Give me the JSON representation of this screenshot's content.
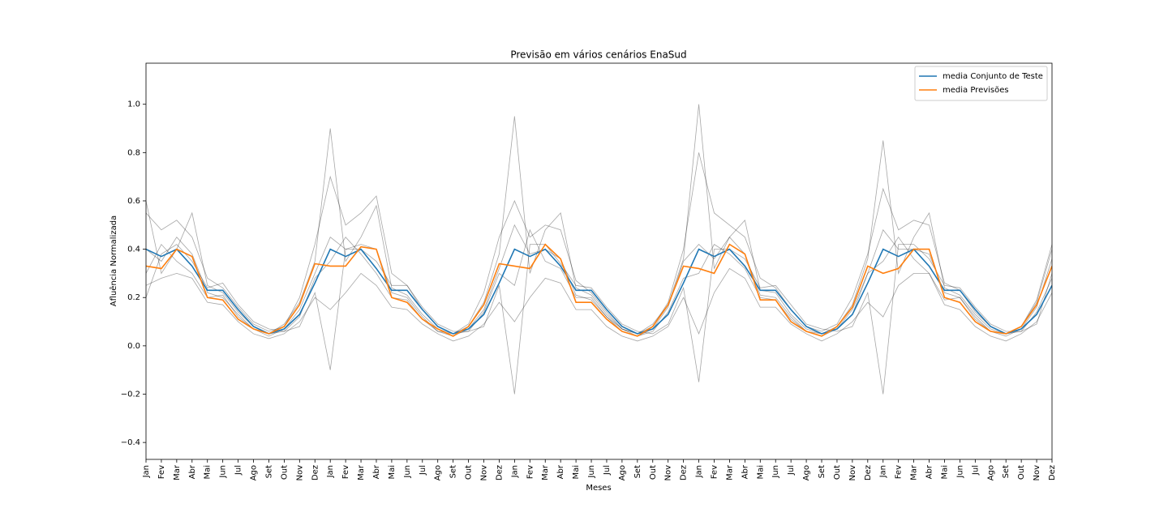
{
  "chart_data": {
    "type": "line",
    "title": "Previsão em vários cenários EnaSud",
    "xlabel": "Meses",
    "ylabel": "Afluência Normalizada",
    "categories": [
      "Jan",
      "Fev",
      "Mar",
      "Abr",
      "Mai",
      "Jun",
      "Jul",
      "Ago",
      "Set",
      "Out",
      "Nov",
      "Dez",
      "Jan",
      "Fev",
      "Mar",
      "Abr",
      "Mai",
      "Jun",
      "Jul",
      "Ago",
      "Set",
      "Out",
      "Nov",
      "Dez",
      "Jan",
      "Fev",
      "Mar",
      "Abr",
      "Mai",
      "Jun",
      "Jul",
      "Ago",
      "Set",
      "Out",
      "Nov",
      "Dez",
      "Jan",
      "Fev",
      "Mar",
      "Abr",
      "Mai",
      "Jun",
      "Jul",
      "Ago",
      "Set",
      "Out",
      "Nov",
      "Dez",
      "Jan",
      "Fev",
      "Mar",
      "Abr",
      "Mai",
      "Jun",
      "Jul",
      "Ago",
      "Set",
      "Out",
      "Nov",
      "Dez"
    ],
    "series": [
      {
        "name": "media Conjunto de Teste",
        "color": "#1f77b4",
        "values": [
          0.4,
          0.37,
          0.4,
          0.33,
          0.23,
          0.23,
          0.15,
          0.08,
          0.05,
          0.07,
          0.13,
          0.26,
          0.4,
          0.37,
          0.4,
          0.32,
          0.23,
          0.23,
          0.15,
          0.08,
          0.05,
          0.07,
          0.13,
          0.26,
          0.4,
          0.37,
          0.4,
          0.33,
          0.23,
          0.23,
          0.15,
          0.08,
          0.05,
          0.07,
          0.13,
          0.26,
          0.4,
          0.37,
          0.4,
          0.33,
          0.23,
          0.23,
          0.15,
          0.08,
          0.05,
          0.07,
          0.13,
          0.26,
          0.4,
          0.37,
          0.4,
          0.33,
          0.23,
          0.23,
          0.15,
          0.08,
          0.05,
          0.07,
          0.13,
          0.25
        ]
      },
      {
        "name": "media Previsões",
        "color": "#ff7f0e",
        "values": [
          0.33,
          0.32,
          0.4,
          0.37,
          0.2,
          0.19,
          0.11,
          0.07,
          0.05,
          0.08,
          0.17,
          0.34,
          0.33,
          0.33,
          0.41,
          0.4,
          0.2,
          0.18,
          0.11,
          0.07,
          0.04,
          0.08,
          0.17,
          0.34,
          0.33,
          0.32,
          0.42,
          0.36,
          0.18,
          0.18,
          0.11,
          0.06,
          0.04,
          0.08,
          0.17,
          0.33,
          0.32,
          0.3,
          0.42,
          0.38,
          0.19,
          0.19,
          0.1,
          0.06,
          0.04,
          0.08,
          0.16,
          0.33,
          0.3,
          0.32,
          0.4,
          0.4,
          0.2,
          0.18,
          0.1,
          0.06,
          0.05,
          0.08,
          0.17,
          0.33
        ]
      }
    ],
    "scenario_color": "#000000",
    "scenarios": [
      [
        0.55,
        0.48,
        0.52,
        0.45,
        0.28,
        0.24,
        0.16,
        0.09,
        0.06,
        0.08,
        0.2,
        0.42,
        0.7,
        0.5,
        0.55,
        0.62,
        0.3,
        0.25,
        0.15,
        0.08,
        0.05,
        0.09,
        0.22,
        0.45,
        0.6,
        0.45,
        0.5,
        0.48,
        0.27,
        0.22,
        0.14,
        0.07,
        0.05,
        0.08,
        0.18,
        0.4,
        0.8,
        0.55,
        0.5,
        0.45,
        0.28,
        0.24,
        0.15,
        0.08,
        0.06,
        0.09,
        0.2,
        0.38,
        0.65,
        0.48,
        0.52,
        0.5,
        0.26,
        0.23,
        0.14,
        0.08,
        0.05,
        0.08,
        0.19,
        0.42
      ],
      [
        0.25,
        0.28,
        0.3,
        0.28,
        0.18,
        0.17,
        0.1,
        0.05,
        0.03,
        0.05,
        0.1,
        0.2,
        0.15,
        0.22,
        0.3,
        0.25,
        0.16,
        0.15,
        0.09,
        0.05,
        0.02,
        0.04,
        0.09,
        0.18,
        0.1,
        0.2,
        0.28,
        0.26,
        0.15,
        0.15,
        0.08,
        0.04,
        0.02,
        0.04,
        0.08,
        0.2,
        0.05,
        0.22,
        0.32,
        0.28,
        0.16,
        0.16,
        0.09,
        0.05,
        0.02,
        0.05,
        0.1,
        0.18,
        0.12,
        0.25,
        0.3,
        0.3,
        0.17,
        0.15,
        0.08,
        0.04,
        0.02,
        0.05,
        0.1,
        0.22
      ],
      [
        0.4,
        0.35,
        0.45,
        0.38,
        0.22,
        0.2,
        0.13,
        0.07,
        0.04,
        0.07,
        0.15,
        0.3,
        0.45,
        0.4,
        0.42,
        0.4,
        0.22,
        0.2,
        0.12,
        0.06,
        0.04,
        0.07,
        0.15,
        0.32,
        0.5,
        0.38,
        0.4,
        0.36,
        0.21,
        0.19,
        0.12,
        0.06,
        0.04,
        0.07,
        0.16,
        0.35,
        0.42,
        0.36,
        0.45,
        0.38,
        0.21,
        0.2,
        0.12,
        0.06,
        0.04,
        0.07,
        0.15,
        0.3,
        0.48,
        0.4,
        0.4,
        0.38,
        0.22,
        0.2,
        0.12,
        0.06,
        0.04,
        0.07,
        0.16,
        0.36
      ],
      [
        0.3,
        0.42,
        0.35,
        0.3,
        0.2,
        0.21,
        0.12,
        0.07,
        0.05,
        0.06,
        0.12,
        0.28,
        0.35,
        0.45,
        0.38,
        0.3,
        0.2,
        0.19,
        0.11,
        0.06,
        0.05,
        0.06,
        0.14,
        0.3,
        0.25,
        0.48,
        0.35,
        0.32,
        0.2,
        0.2,
        0.12,
        0.07,
        0.04,
        0.06,
        0.14,
        0.28,
        0.3,
        0.42,
        0.38,
        0.32,
        0.2,
        0.19,
        0.11,
        0.06,
        0.05,
        0.07,
        0.13,
        0.3,
        0.35,
        0.45,
        0.36,
        0.3,
        0.19,
        0.2,
        0.11,
        0.06,
        0.05,
        0.06,
        0.14,
        0.28
      ],
      [
        0.6,
        0.3,
        0.4,
        0.55,
        0.25,
        0.22,
        0.14,
        0.08,
        0.05,
        0.09,
        0.18,
        0.35,
        0.9,
        0.35,
        0.45,
        0.58,
        0.24,
        0.21,
        0.13,
        0.07,
        0.05,
        0.08,
        0.18,
        0.38,
        0.95,
        0.3,
        0.48,
        0.55,
        0.24,
        0.21,
        0.13,
        0.07,
        0.05,
        0.09,
        0.17,
        0.36,
        1.0,
        0.32,
        0.45,
        0.52,
        0.23,
        0.22,
        0.13,
        0.07,
        0.05,
        0.08,
        0.17,
        0.36,
        0.85,
        0.3,
        0.45,
        0.55,
        0.24,
        0.21,
        0.13,
        0.07,
        0.05,
        0.08,
        0.18,
        0.4
      ],
      [
        0.2,
        0.38,
        0.42,
        0.35,
        0.24,
        0.26,
        0.17,
        0.1,
        0.07,
        0.06,
        0.08,
        0.22,
        -0.1,
        0.4,
        0.4,
        0.35,
        0.25,
        0.25,
        0.16,
        0.09,
        0.06,
        0.06,
        0.08,
        0.25,
        -0.2,
        0.42,
        0.42,
        0.34,
        0.25,
        0.24,
        0.16,
        0.09,
        0.06,
        0.05,
        0.09,
        0.24,
        -0.15,
        0.4,
        0.4,
        0.36,
        0.24,
        0.25,
        0.17,
        0.09,
        0.07,
        0.06,
        0.08,
        0.22,
        -0.2,
        0.42,
        0.42,
        0.36,
        0.25,
        0.24,
        0.16,
        0.09,
        0.06,
        0.06,
        0.09,
        0.3
      ]
    ],
    "ylim": [
      -0.47,
      1.17
    ],
    "yticks": [
      {
        "value": -0.4,
        "label": "−0.4"
      },
      {
        "value": -0.2,
        "label": "−0.2"
      },
      {
        "value": 0.0,
        "label": "0.0"
      },
      0.2,
      0.4,
      0.6,
      0.8,
      {
        "value": 1.0,
        "label": "1.0"
      }
    ],
    "legend": "upper right"
  }
}
